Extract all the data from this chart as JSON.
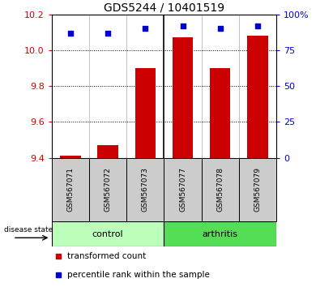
{
  "title": "GDS5244 / 10401519",
  "samples": [
    "GSM567071",
    "GSM567072",
    "GSM567073",
    "GSM567077",
    "GSM567078",
    "GSM567079"
  ],
  "bar_values": [
    9.41,
    9.47,
    9.9,
    10.07,
    9.9,
    10.08
  ],
  "bar_baseline": 9.4,
  "percentile_values": [
    87,
    87,
    90,
    92,
    90,
    92
  ],
  "ylim_left": [
    9.4,
    10.2
  ],
  "ylim_right": [
    0,
    100
  ],
  "yticks_left": [
    9.4,
    9.6,
    9.8,
    10.0,
    10.2
  ],
  "yticks_right": [
    0,
    25,
    50,
    75,
    100
  ],
  "ytick_labels_right": [
    "0",
    "25",
    "50",
    "75",
    "100%"
  ],
  "bar_color": "#cc0000",
  "dot_color": "#0000cc",
  "control_color": "#bbffbb",
  "arthritis_color": "#55dd55",
  "control_label": "control",
  "arthritis_label": "arthritis",
  "disease_state_label": "disease state",
  "legend_bar_label": "transformed count",
  "legend_dot_label": "percentile rank within the sample",
  "group_box_color": "#cccccc",
  "title_fontsize": 10,
  "tick_label_fontsize": 8,
  "sample_fontsize": 6.5,
  "legend_fontsize": 7.5,
  "group_fontsize": 8
}
